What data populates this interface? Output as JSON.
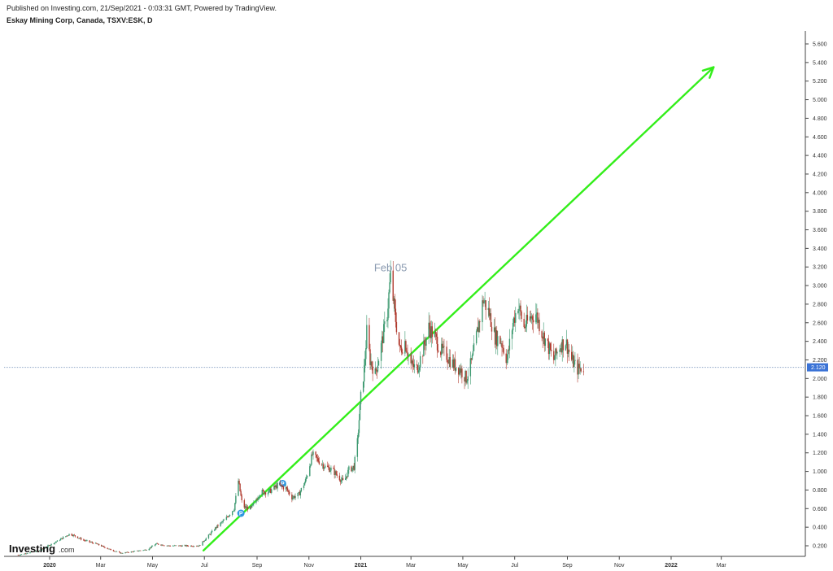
{
  "header": {
    "published": "Published on Investing.com, 21/Sep/2021 - 0:03:31 GMT, Powered by TradingView.",
    "symbol": "Eskay Mining Corp, Canada, TSXV:ESK, D"
  },
  "logo": {
    "main": "Investing",
    "suffix": ".com"
  },
  "colors": {
    "up": "#3d9970",
    "down": "#b03a2e",
    "trendline": "#33ee1a",
    "price_line": "#8fa6c8",
    "price_badge": "#3b73d6",
    "marker": "#2e96e0"
  },
  "chart_data": {
    "type": "candlestick",
    "title": "Eskay Mining Corp, Canada, TSXV:ESK, D",
    "xlabel": "",
    "ylabel": "",
    "ylim": [
      0.1,
      5.7
    ],
    "y_ticks": [
      "0.200",
      "0.400",
      "0.600",
      "0.800",
      "1.000",
      "1.200",
      "1.400",
      "1.600",
      "1.800",
      "2.000",
      "2.200",
      "2.400",
      "2.600",
      "2.800",
      "3.000",
      "3.200",
      "3.400",
      "3.600",
      "3.800",
      "4.000",
      "4.200",
      "4.400",
      "4.600",
      "4.800",
      "5.000",
      "5.200",
      "5.400",
      "5.600"
    ],
    "x_ticks": [
      {
        "label": "2020",
        "date": "2020-01-01",
        "bold": true
      },
      {
        "label": "Mar",
        "date": "2020-03-01"
      },
      {
        "label": "May",
        "date": "2020-05-01"
      },
      {
        "label": "Jul",
        "date": "2020-07-01"
      },
      {
        "label": "Sep",
        "date": "2020-09-01"
      },
      {
        "label": "Nov",
        "date": "2020-11-01"
      },
      {
        "label": "2021",
        "date": "2021-01-01",
        "bold": true
      },
      {
        "label": "Mar",
        "date": "2021-03-01"
      },
      {
        "label": "May",
        "date": "2021-05-01"
      },
      {
        "label": "Jul",
        "date": "2021-07-01"
      },
      {
        "label": "Sep",
        "date": "2021-09-01"
      },
      {
        "label": "Nov",
        "date": "2021-11-01"
      },
      {
        "label": "2022",
        "date": "2022-01-01",
        "bold": true
      },
      {
        "label": "Mar",
        "date": "2022-03-01"
      }
    ],
    "last_price": "2.120",
    "annotation": "Feb 05",
    "markers": [
      {
        "label": "P",
        "date": "2020-08-13",
        "y": 0.55
      },
      {
        "label": "P",
        "date": "2020-10-01",
        "y": 0.87
      }
    ],
    "trendline": {
      "from": {
        "date": "2020-06-30",
        "y": 0.15
      },
      "to": {
        "date": "2022-02-20",
        "y": 5.35
      }
    },
    "price_series": [
      [
        "2019-11-25",
        0.1
      ],
      [
        "2019-12-20",
        0.15
      ],
      [
        "2020-01-10",
        0.25
      ],
      [
        "2020-01-25",
        0.33
      ],
      [
        "2020-02-10",
        0.26
      ],
      [
        "2020-02-25",
        0.22
      ],
      [
        "2020-03-12",
        0.16
      ],
      [
        "2020-03-25",
        0.12
      ],
      [
        "2020-04-10",
        0.14
      ],
      [
        "2020-04-25",
        0.16
      ],
      [
        "2020-05-05",
        0.22
      ],
      [
        "2020-05-20",
        0.2
      ],
      [
        "2020-06-10",
        0.2
      ],
      [
        "2020-06-25",
        0.2
      ],
      [
        "2020-07-03",
        0.28
      ],
      [
        "2020-07-15",
        0.4
      ],
      [
        "2020-07-25",
        0.48
      ],
      [
        "2020-08-05",
        0.6
      ],
      [
        "2020-08-10",
        0.9
      ],
      [
        "2020-08-15",
        0.62
      ],
      [
        "2020-08-25",
        0.6
      ],
      [
        "2020-09-05",
        0.78
      ],
      [
        "2020-09-15",
        0.78
      ],
      [
        "2020-09-25",
        0.85
      ],
      [
        "2020-10-05",
        0.82
      ],
      [
        "2020-10-12",
        0.72
      ],
      [
        "2020-10-20",
        0.75
      ],
      [
        "2020-10-28",
        0.9
      ],
      [
        "2020-11-05",
        1.18
      ],
      [
        "2020-11-12",
        1.12
      ],
      [
        "2020-11-20",
        1.05
      ],
      [
        "2020-11-28",
        1.02
      ],
      [
        "2020-12-05",
        0.95
      ],
      [
        "2020-12-12",
        0.88
      ],
      [
        "2020-12-18",
        1.02
      ],
      [
        "2020-12-24",
        1.05
      ],
      [
        "2020-12-28",
        1.32
      ],
      [
        "2021-01-01",
        1.8
      ],
      [
        "2021-01-05",
        2.1
      ],
      [
        "2021-01-08",
        2.5
      ],
      [
        "2021-01-12",
        2.2
      ],
      [
        "2021-01-18",
        2.05
      ],
      [
        "2021-01-25",
        2.35
      ],
      [
        "2021-02-01",
        2.7
      ],
      [
        "2021-02-05",
        3.1
      ],
      [
        "2021-02-10",
        2.7
      ],
      [
        "2021-02-16",
        2.3
      ],
      [
        "2021-02-22",
        2.4
      ],
      [
        "2021-03-01",
        2.15
      ],
      [
        "2021-03-08",
        2.1
      ],
      [
        "2021-03-15",
        2.3
      ],
      [
        "2021-03-22",
        2.55
      ],
      [
        "2021-03-29",
        2.45
      ],
      [
        "2021-04-05",
        2.3
      ],
      [
        "2021-04-12",
        2.25
      ],
      [
        "2021-04-20",
        2.15
      ],
      [
        "2021-04-28",
        2.1
      ],
      [
        "2021-05-05",
        2.0
      ],
      [
        "2021-05-12",
        2.2
      ],
      [
        "2021-05-18",
        2.5
      ],
      [
        "2021-05-25",
        2.85
      ],
      [
        "2021-06-01",
        2.7
      ],
      [
        "2021-06-08",
        2.45
      ],
      [
        "2021-06-15",
        2.4
      ],
      [
        "2021-06-22",
        2.2
      ],
      [
        "2021-06-29",
        2.6
      ],
      [
        "2021-07-05",
        2.8
      ],
      [
        "2021-07-12",
        2.55
      ],
      [
        "2021-07-19",
        2.65
      ],
      [
        "2021-07-26",
        2.7
      ],
      [
        "2021-08-02",
        2.5
      ],
      [
        "2021-08-09",
        2.35
      ],
      [
        "2021-08-16",
        2.2
      ],
      [
        "2021-08-23",
        2.35
      ],
      [
        "2021-08-30",
        2.4
      ],
      [
        "2021-09-06",
        2.2
      ],
      [
        "2021-09-13",
        2.1
      ],
      [
        "2021-09-20",
        2.12
      ]
    ]
  }
}
